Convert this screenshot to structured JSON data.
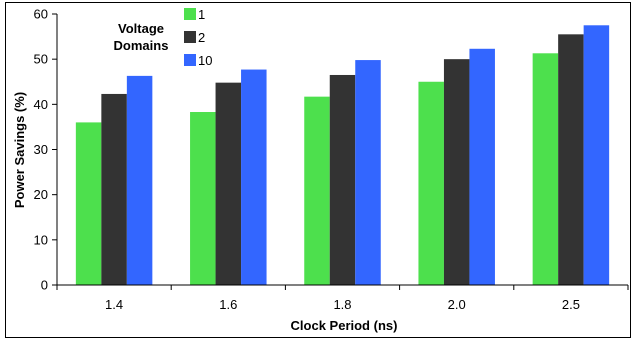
{
  "chart_data": {
    "type": "bar",
    "xlabel": "Clock Period (ns)",
    "ylabel": "Power Savings (%)",
    "categories": [
      "1.4",
      "1.6",
      "1.8",
      "2.0",
      "2.5"
    ],
    "ylim": [
      0,
      60
    ],
    "yticks": [
      0,
      10,
      20,
      30,
      40,
      50,
      60
    ],
    "grid": false,
    "legend": {
      "title": "Voltage Domains",
      "placement": "top-left"
    },
    "series": [
      {
        "name": "1",
        "color": "#4de04d",
        "values": [
          36.0,
          38.3,
          41.7,
          45.0,
          51.3
        ]
      },
      {
        "name": "2",
        "color": "#333333",
        "values": [
          42.3,
          44.8,
          46.5,
          50.0,
          55.5
        ]
      },
      {
        "name": "10",
        "color": "#3366ff",
        "values": [
          46.3,
          47.7,
          49.8,
          52.3,
          57.5
        ]
      }
    ]
  }
}
